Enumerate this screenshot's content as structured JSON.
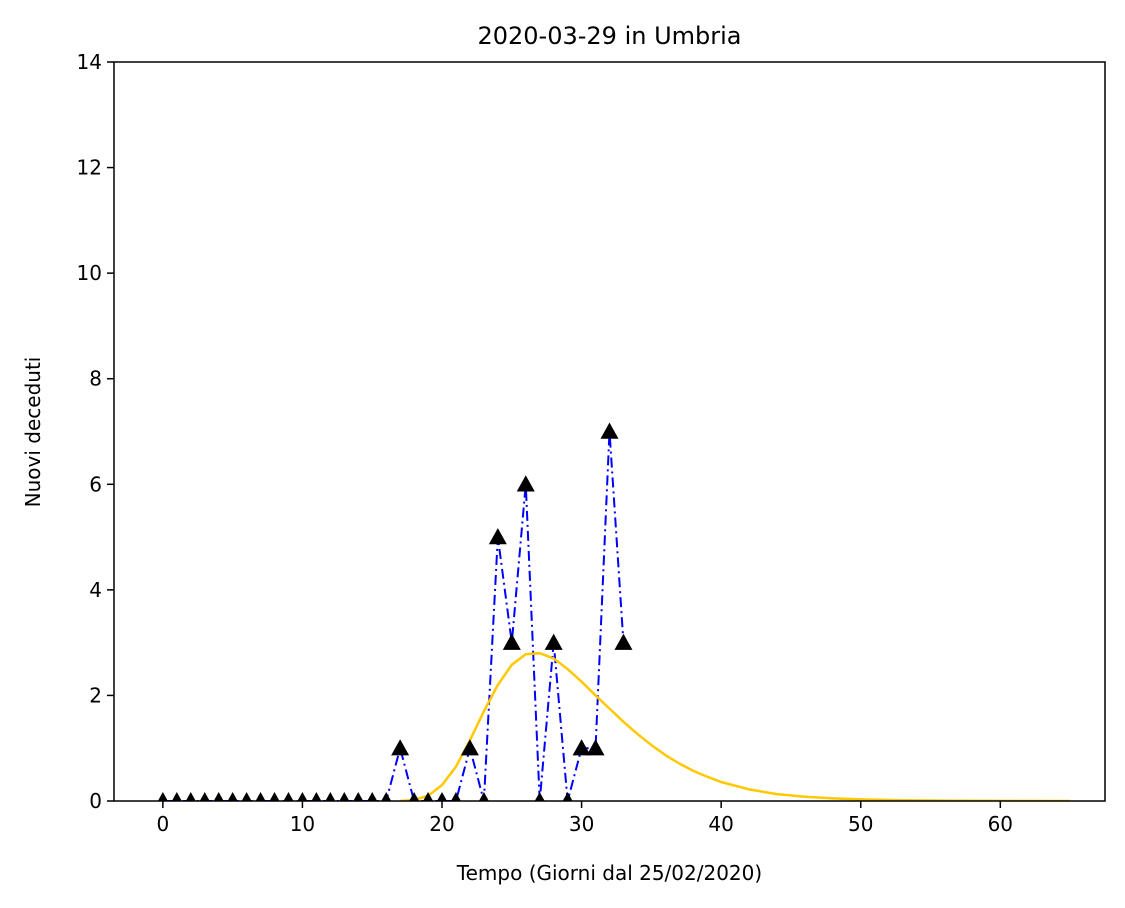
{
  "chart_data": {
    "type": "line",
    "title": "2020-03-29 in Umbria",
    "xlabel": "Tempo (Giorni dal 25/02/2020)",
    "ylabel": "Nuovi deceduti",
    "xlim": [
      -3.5,
      67.5
    ],
    "ylim": [
      0,
      14
    ],
    "xticks": [
      0,
      10,
      20,
      30,
      40,
      50,
      60
    ],
    "yticks": [
      0,
      2,
      4,
      6,
      8,
      10,
      12,
      14
    ],
    "grid": false,
    "series": [
      {
        "kind": "observed",
        "style": "dash-dot line with triangle markers",
        "line_color": "#0000ff",
        "marker_color": "#000000",
        "x": [
          0,
          1,
          2,
          3,
          4,
          5,
          6,
          7,
          8,
          9,
          10,
          11,
          12,
          13,
          14,
          15,
          16,
          17,
          18,
          19,
          20,
          21,
          22,
          23,
          24,
          25,
          26,
          27,
          28,
          29,
          30,
          31,
          32,
          33
        ],
        "y": [
          0,
          0,
          0,
          0,
          0,
          0,
          0,
          0,
          0,
          0,
          0,
          0,
          0,
          0,
          0,
          0,
          0,
          1,
          0,
          0,
          0,
          0,
          1,
          0,
          5,
          3,
          6,
          0,
          3,
          0,
          1,
          1,
          7,
          3
        ]
      },
      {
        "kind": "fit",
        "style": "solid line",
        "line_color": "#ffc800",
        "x": [
          17,
          18,
          19,
          20,
          21,
          22,
          23,
          24,
          25,
          26,
          27,
          28,
          29,
          30,
          31,
          32,
          33,
          34,
          35,
          36,
          37,
          38,
          39,
          40,
          42,
          44,
          46,
          48,
          50,
          53,
          56,
          60,
          65
        ],
        "y": [
          0,
          0.02,
          0.1,
          0.3,
          0.65,
          1.15,
          1.7,
          2.2,
          2.58,
          2.78,
          2.8,
          2.7,
          2.5,
          2.26,
          2.0,
          1.75,
          1.5,
          1.27,
          1.06,
          0.87,
          0.71,
          0.57,
          0.46,
          0.36,
          0.22,
          0.13,
          0.08,
          0.05,
          0.03,
          0.015,
          0.008,
          0.003,
          0.001
        ]
      }
    ]
  }
}
